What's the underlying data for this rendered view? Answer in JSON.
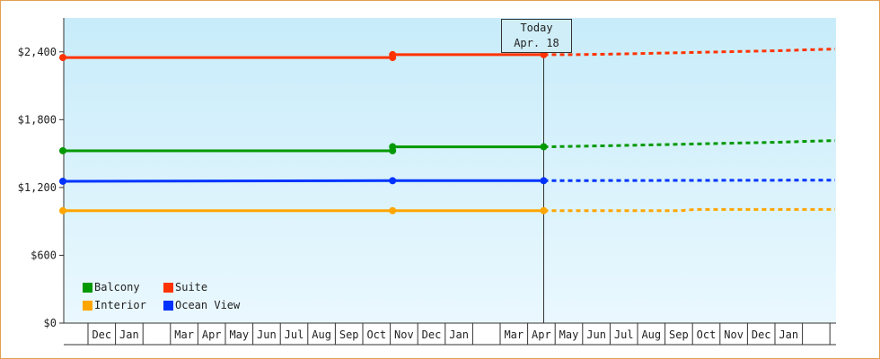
{
  "chart_data": {
    "type": "line",
    "title": "",
    "xlabel": "",
    "ylabel": "",
    "ylim": [
      0,
      2700
    ],
    "y_ticks": [
      "$0",
      "$600",
      "$1,200",
      "$1,800",
      "$2,400"
    ],
    "y_tick_values": [
      0,
      600,
      1200,
      1800,
      2400
    ],
    "x_tick_labels": [
      "",
      "Dec",
      "Jan",
      "",
      "Mar",
      "Apr",
      "May",
      "Jun",
      "Jul",
      "Aug",
      "Sep",
      "Oct",
      "Nov",
      "Dec",
      "Jan",
      "",
      "Mar",
      "Apr",
      "May",
      "Jun",
      "Jul",
      "Aug",
      "Sep",
      "Oct",
      "Nov",
      "Dec",
      "Jan",
      ""
    ],
    "today_marker": {
      "line1": "Today",
      "line2": "Apr. 18"
    },
    "series": [
      {
        "name": "Suite",
        "color": "#ff3300",
        "actual": [
          [
            0,
            2350
          ],
          [
            12,
            2350
          ],
          [
            12,
            2375
          ],
          [
            17.5,
            2375
          ]
        ],
        "forecast": [
          [
            17.5,
            2375
          ],
          [
            18.5,
            2375
          ],
          [
            20,
            2380
          ],
          [
            26,
            2410
          ],
          [
            28.1,
            2425
          ]
        ]
      },
      {
        "name": "Balcony",
        "color": "#009900",
        "actual": [
          [
            0,
            1525
          ],
          [
            12,
            1525
          ],
          [
            12,
            1560
          ],
          [
            17.5,
            1560
          ]
        ],
        "forecast": [
          [
            17.5,
            1560
          ],
          [
            20,
            1570
          ],
          [
            26,
            1600
          ],
          [
            28.1,
            1615
          ]
        ]
      },
      {
        "name": "Ocean View",
        "color": "#0033ff",
        "actual": [
          [
            0,
            1255
          ],
          [
            12,
            1260
          ],
          [
            17.5,
            1260
          ]
        ],
        "forecast": [
          [
            17.5,
            1260
          ],
          [
            28.1,
            1265
          ]
        ]
      },
      {
        "name": "Interior",
        "color": "#ffa500",
        "actual": [
          [
            0,
            995
          ],
          [
            12,
            995
          ],
          [
            17.5,
            995
          ]
        ],
        "forecast": [
          [
            17.5,
            995
          ],
          [
            22.5,
            995
          ],
          [
            23,
            1005
          ],
          [
            28.1,
            1005
          ]
        ]
      }
    ],
    "markers": {
      "Suite": [
        [
          0,
          2350
        ],
        [
          12,
          2350
        ],
        [
          12,
          2375
        ],
        [
          17.5,
          2375
        ]
      ],
      "Balcony": [
        [
          0,
          1525
        ],
        [
          12,
          1525
        ],
        [
          12,
          1560
        ],
        [
          17.5,
          1560
        ]
      ],
      "Ocean View": [
        [
          0,
          1255
        ],
        [
          12,
          1260
        ],
        [
          17.5,
          1260
        ]
      ],
      "Interior": [
        [
          0,
          995
        ],
        [
          12,
          995
        ],
        [
          17.5,
          995
        ]
      ]
    },
    "legend": [
      "Balcony",
      "Suite",
      "Interior",
      "Ocean View"
    ]
  }
}
